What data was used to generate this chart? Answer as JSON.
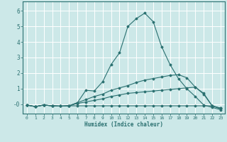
{
  "xlabel": "Humidex (Indice chaleur)",
  "xlim": [
    -0.5,
    23.5
  ],
  "ylim": [
    -0.6,
    6.6
  ],
  "xticks": [
    0,
    1,
    2,
    3,
    4,
    5,
    6,
    7,
    8,
    9,
    10,
    11,
    12,
    13,
    14,
    15,
    16,
    17,
    18,
    19,
    20,
    21,
    22,
    23
  ],
  "yticks": [
    0,
    1,
    2,
    3,
    4,
    5,
    6
  ],
  "ytick_labels": [
    "-0",
    "1",
    "2",
    "3",
    "4",
    "5",
    "6"
  ],
  "background_color": "#cce8e8",
  "grid_color": "#b0d0d0",
  "line_color": "#2a7070",
  "series": [
    {
      "x": [
        0,
        1,
        2,
        3,
        4,
        5,
        6,
        7,
        8,
        9,
        10,
        11,
        12,
        13,
        14,
        15,
        16,
        17,
        18,
        19,
        20,
        21,
        22,
        23
      ],
      "y": [
        -0.05,
        -0.15,
        -0.05,
        -0.1,
        -0.12,
        -0.1,
        -0.1,
        -0.1,
        -0.1,
        -0.1,
        -0.1,
        -0.1,
        -0.1,
        -0.1,
        -0.1,
        -0.1,
        -0.1,
        -0.1,
        -0.1,
        -0.1,
        -0.1,
        -0.1,
        -0.1,
        -0.25
      ]
    },
    {
      "x": [
        0,
        1,
        2,
        3,
        4,
        5,
        6,
        7,
        8,
        9,
        10,
        11,
        12,
        13,
        14,
        15,
        16,
        17,
        18,
        19,
        20,
        21,
        22,
        23
      ],
      "y": [
        -0.05,
        -0.15,
        -0.05,
        -0.1,
        -0.12,
        -0.1,
        0.05,
        0.15,
        0.25,
        0.35,
        0.5,
        0.6,
        0.7,
        0.75,
        0.8,
        0.85,
        0.9,
        0.95,
        1.0,
        1.05,
        1.1,
        0.7,
        -0.1,
        -0.25
      ]
    },
    {
      "x": [
        0,
        1,
        2,
        3,
        4,
        5,
        6,
        7,
        8,
        9,
        10,
        11,
        12,
        13,
        14,
        15,
        16,
        17,
        18,
        19,
        20,
        21,
        22,
        23
      ],
      "y": [
        -0.05,
        -0.15,
        -0.05,
        -0.1,
        -0.12,
        -0.1,
        0.1,
        0.3,
        0.5,
        0.65,
        0.9,
        1.05,
        1.2,
        1.4,
        1.55,
        1.65,
        1.75,
        1.85,
        1.9,
        1.7,
        1.1,
        0.65,
        -0.1,
        -0.3
      ]
    },
    {
      "x": [
        0,
        1,
        2,
        3,
        4,
        5,
        6,
        7,
        8,
        9,
        10,
        11,
        12,
        13,
        14,
        15,
        16,
        17,
        18,
        19,
        20,
        21,
        22,
        23
      ],
      "y": [
        -0.05,
        -0.15,
        -0.05,
        -0.1,
        -0.12,
        -0.1,
        0.1,
        0.9,
        0.85,
        1.45,
        2.55,
        3.3,
        5.0,
        5.5,
        5.85,
        5.3,
        3.7,
        2.55,
        1.65,
        1.0,
        0.5,
        -0.05,
        -0.2,
        -0.35
      ]
    }
  ]
}
